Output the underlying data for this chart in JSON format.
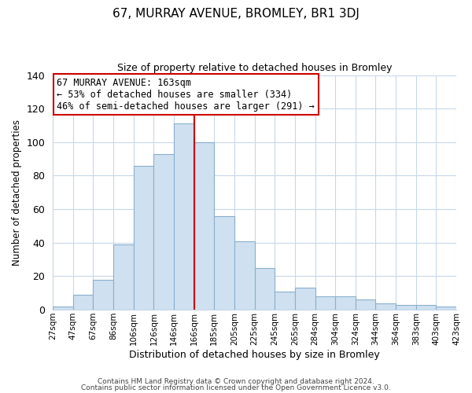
{
  "title": "67, MURRAY AVENUE, BROMLEY, BR1 3DJ",
  "subtitle": "Size of property relative to detached houses in Bromley",
  "xlabel": "Distribution of detached houses by size in Bromley",
  "ylabel": "Number of detached properties",
  "categories": [
    "27sqm",
    "47sqm",
    "67sqm",
    "86sqm",
    "106sqm",
    "126sqm",
    "146sqm",
    "166sqm",
    "185sqm",
    "205sqm",
    "225sqm",
    "245sqm",
    "265sqm",
    "284sqm",
    "304sqm",
    "324sqm",
    "344sqm",
    "364sqm",
    "383sqm",
    "403sqm",
    "423sqm"
  ],
  "values": [
    2,
    9,
    18,
    39,
    86,
    93,
    111,
    100,
    56,
    41,
    25,
    11,
    13,
    8,
    8,
    6,
    4,
    3,
    3,
    2
  ],
  "bar_color": "#cfe0f0",
  "bar_edge_color": "#8ab0cc",
  "vline_color": "#cc0000",
  "annotation_title": "67 MURRAY AVENUE: 163sqm",
  "annotation_line1": "← 53% of detached houses are smaller (334)",
  "annotation_line2": "46% of semi-detached houses are larger (291) →",
  "annotation_box_color": "#ffffff",
  "annotation_box_edge": "#cc0000",
  "ylim": [
    0,
    140
  ],
  "yticks": [
    0,
    20,
    40,
    60,
    80,
    100,
    120,
    140
  ],
  "footer1": "Contains HM Land Registry data © Crown copyright and database right 2024.",
  "footer2": "Contains public sector information licensed under the Open Government Licence v3.0.",
  "bg_color": "#ffffff",
  "grid_color": "#c8d8e8"
}
